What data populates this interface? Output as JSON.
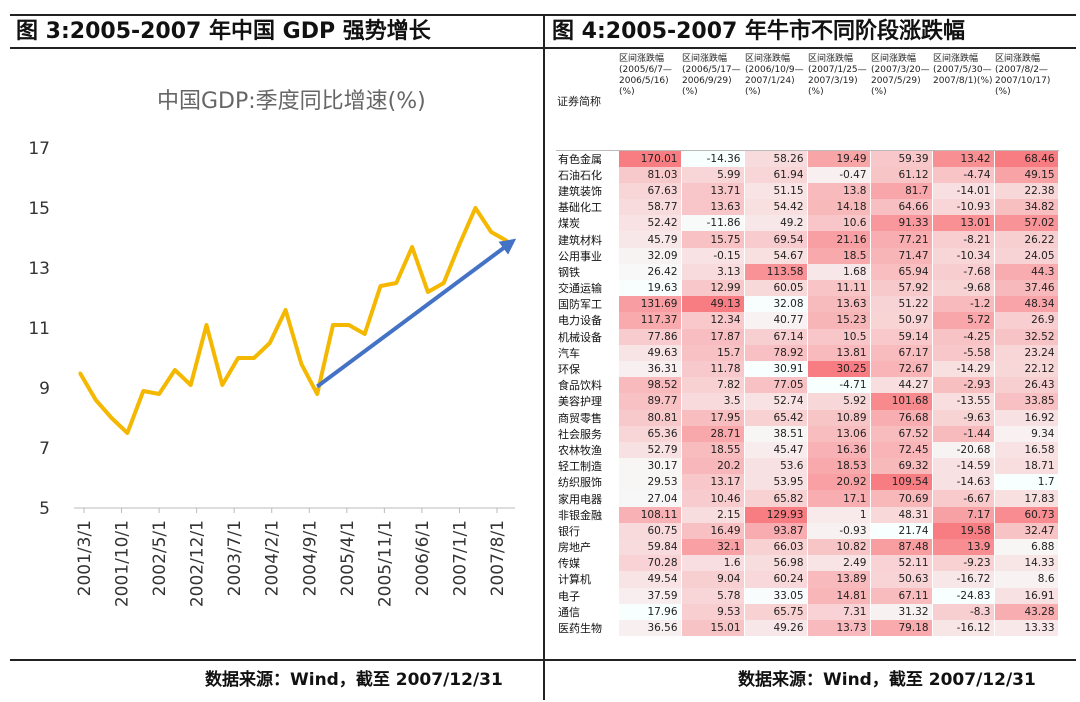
{
  "left": {
    "title": "图 3:2005-2007 年中国 GDP 强势增长",
    "source": "数据来源：Wind，截至 2007/12/31"
  },
  "right": {
    "title": "图 4:2005-2007 年牛市不同阶段涨跌幅",
    "source": "数据来源：Wind，截至 2007/12/31"
  },
  "chart_data": {
    "type": "line",
    "title": "中国GDP:季度同比增速(%)",
    "xlabel": "",
    "ylabel": "",
    "ylim": [
      5,
      17
    ],
    "yticks": [
      "5",
      "7",
      "9",
      "11",
      "13",
      "15",
      "17"
    ],
    "xtick_labels": [
      "2001/3/1",
      "2001/10/1",
      "2002/5/1",
      "2002/12/1",
      "2003/7/1",
      "2004/2/1",
      "2004/9/1",
      "2005/4/1",
      "2005/11/1",
      "2006/6/1",
      "2007/1/1",
      "2007/8/1"
    ],
    "x": [
      "2001/3/1",
      "2001/6/1",
      "2001/9/1",
      "2001/12/1",
      "2002/3/1",
      "2002/6/1",
      "2002/9/1",
      "2002/12/1",
      "2003/3/1",
      "2003/6/1",
      "2003/9/1",
      "2003/12/1",
      "2004/3/1",
      "2004/6/1",
      "2004/9/1",
      "2004/12/1",
      "2005/3/1",
      "2005/6/1",
      "2005/9/1",
      "2005/12/1",
      "2006/3/1",
      "2006/6/1",
      "2006/9/1",
      "2006/12/1",
      "2007/3/1",
      "2007/6/1",
      "2007/9/1",
      "2007/12/1"
    ],
    "series": [
      {
        "values": [
          9.5,
          8.6,
          8.0,
          7.5,
          8.9,
          8.8,
          9.6,
          9.1,
          11.1,
          9.1,
          10.0,
          10.0,
          10.5,
          11.6,
          9.8,
          8.8,
          11.1,
          11.1,
          10.8,
          12.4,
          12.5,
          13.7,
          12.2,
          12.5,
          13.8,
          15.0,
          14.2,
          13.9
        ],
        "color": "#F5B800"
      }
    ],
    "annotations": [
      {
        "type": "arrow",
        "color": "#4472C4",
        "from": {
          "x": "2004/12/1",
          "y": 9.05
        },
        "to": {
          "x": "2007/12/1",
          "y": 13.85
        }
      }
    ]
  },
  "table": {
    "name_header": "证券简称",
    "columns": [
      "区间涨跌幅(2005/6/7—2006/5/16)(%)",
      "区间涨跌幅(2006/5/17—2006/9/29)(%)",
      "区间涨跌幅(2006/10/9—2007/1/24)(%)",
      "区间涨跌幅(2007/1/25—2007/3/19)(%)",
      "区间涨跌幅(2007/3/20—2007/5/29)(%)",
      "区间涨跌幅(2007/5/30—2007/8/1)(%)",
      "区间涨跌幅(2007/8/2—2007/10/17)(%)"
    ],
    "rows": [
      [
        "有色金属",
        "170.01",
        "-14.36",
        "58.26",
        "19.49",
        "59.39",
        "13.42",
        "68.46"
      ],
      [
        "石油石化",
        "81.03",
        "5.99",
        "61.94",
        "-0.47",
        "61.12",
        "-4.74",
        "49.15"
      ],
      [
        "建筑装饰",
        "67.63",
        "13.71",
        "51.15",
        "13.8",
        "81.7",
        "-14.01",
        "22.38"
      ],
      [
        "基础化工",
        "58.77",
        "13.63",
        "54.42",
        "14.18",
        "64.66",
        "-10.93",
        "34.82"
      ],
      [
        "煤炭",
        "52.42",
        "-11.86",
        "49.2",
        "10.6",
        "91.33",
        "13.01",
        "57.02"
      ],
      [
        "建筑材料",
        "45.79",
        "15.75",
        "69.54",
        "21.16",
        "77.21",
        "-8.21",
        "26.22"
      ],
      [
        "公用事业",
        "32.09",
        "-0.15",
        "54.67",
        "18.5",
        "71.47",
        "-10.34",
        "24.05"
      ],
      [
        "钢铁",
        "26.42",
        "3.13",
        "113.58",
        "1.68",
        "65.94",
        "-7.68",
        "44.3"
      ],
      [
        "交通运输",
        "19.63",
        "12.99",
        "60.05",
        "11.11",
        "57.92",
        "-9.68",
        "37.46"
      ],
      [
        "国防军工",
        "131.69",
        "49.13",
        "32.08",
        "13.63",
        "51.22",
        "-1.2",
        "48.34"
      ],
      [
        "电力设备",
        "117.37",
        "12.34",
        "40.77",
        "15.23",
        "50.97",
        "5.72",
        "26.9"
      ],
      [
        "机械设备",
        "77.86",
        "17.87",
        "67.14",
        "10.5",
        "59.14",
        "-4.25",
        "32.52"
      ],
      [
        "汽车",
        "49.63",
        "15.7",
        "78.92",
        "13.81",
        "67.17",
        "-5.58",
        "23.24"
      ],
      [
        "环保",
        "36.31",
        "11.78",
        "30.91",
        "30.25",
        "72.67",
        "-14.29",
        "22.12"
      ],
      [
        "食品饮料",
        "98.52",
        "7.82",
        "77.05",
        "-4.71",
        "44.27",
        "-2.93",
        "26.43"
      ],
      [
        "美容护理",
        "89.77",
        "3.5",
        "52.74",
        "5.92",
        "101.68",
        "-13.55",
        "33.85"
      ],
      [
        "商贸零售",
        "80.81",
        "17.95",
        "65.42",
        "10.89",
        "76.68",
        "-9.63",
        "16.92"
      ],
      [
        "社会服务",
        "65.36",
        "28.71",
        "38.51",
        "13.06",
        "67.52",
        "-1.44",
        "9.34"
      ],
      [
        "农林牧渔",
        "52.79",
        "18.55",
        "45.47",
        "16.36",
        "72.45",
        "-20.68",
        "16.58"
      ],
      [
        "轻工制造",
        "30.17",
        "20.2",
        "53.6",
        "18.53",
        "69.32",
        "-14.59",
        "18.71"
      ],
      [
        "纺织服饰",
        "29.53",
        "13.17",
        "53.95",
        "20.92",
        "109.54",
        "-14.63",
        "1.7"
      ],
      [
        "家用电器",
        "27.04",
        "10.46",
        "65.82",
        "17.1",
        "70.69",
        "-6.67",
        "17.83"
      ],
      [
        "非银金融",
        "108.11",
        "2.15",
        "129.93",
        "1",
        "48.31",
        "7.17",
        "60.73"
      ],
      [
        "银行",
        "60.75",
        "16.49",
        "93.87",
        "-0.93",
        "21.74",
        "19.58",
        "32.47"
      ],
      [
        "房地产",
        "59.84",
        "32.1",
        "66.03",
        "10.82",
        "87.48",
        "13.9",
        "6.88"
      ],
      [
        "传媒",
        "70.28",
        "1.6",
        "56.98",
        "2.49",
        "52.11",
        "-9.23",
        "14.33"
      ],
      [
        "计算机",
        "49.54",
        "9.04",
        "60.24",
        "13.89",
        "50.63",
        "-16.72",
        "8.6"
      ],
      [
        "电子",
        "37.59",
        "5.78",
        "33.05",
        "14.81",
        "67.11",
        "-24.83",
        "16.91"
      ],
      [
        "通信",
        "17.96",
        "9.53",
        "65.75",
        "7.31",
        "31.32",
        "-8.3",
        "43.28"
      ],
      [
        "医药生物",
        "36.56",
        "15.01",
        "49.26",
        "13.73",
        "79.18",
        "-16.12",
        "13.33"
      ]
    ]
  }
}
